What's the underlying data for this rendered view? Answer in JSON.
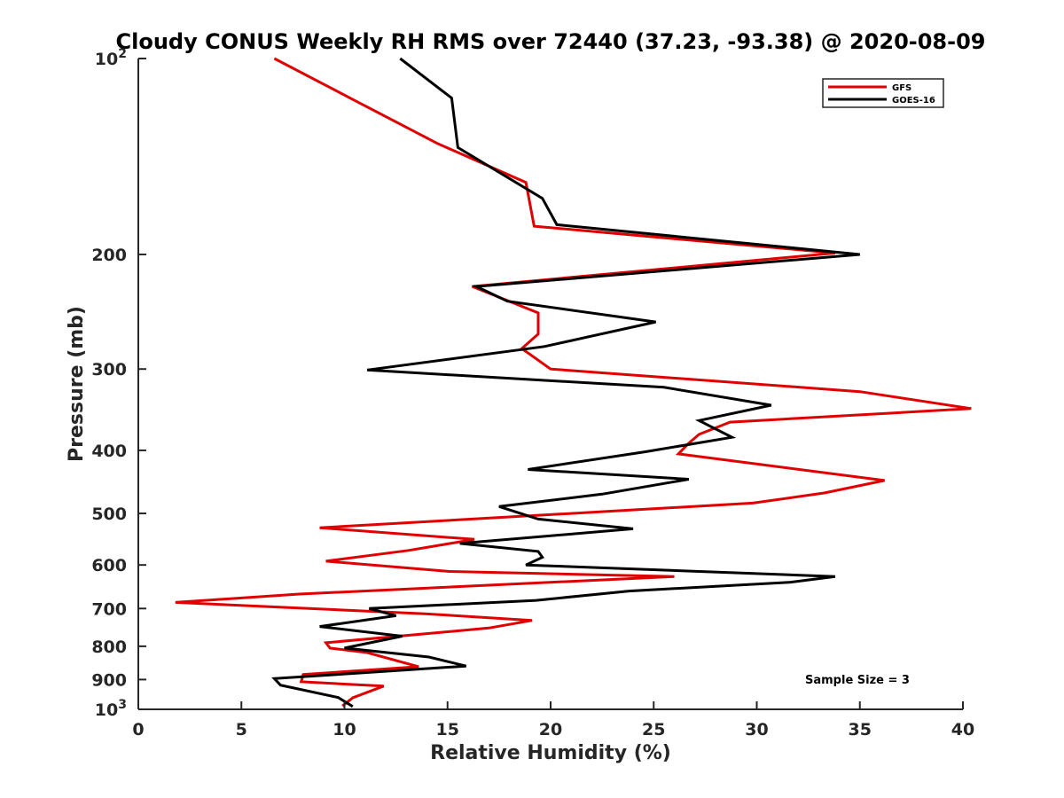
{
  "chart_data": {
    "type": "line",
    "title": "Cloudy CONUS Weekly RH RMS over 72440 (37.23, -93.38) @ 2020-08-09",
    "xlabel": "Relative Humidity (%)",
    "ylabel": "Pressure (mb)",
    "xlim": [
      0,
      40
    ],
    "ylim": [
      100,
      1000
    ],
    "yscale": "log",
    "yreversed": true,
    "grid": false,
    "legend_position": "top-right",
    "x_ticks": [
      0,
      5,
      10,
      15,
      20,
      25,
      30,
      35,
      40
    ],
    "x_tick_labels": [
      "0",
      "5",
      "10",
      "15",
      "20",
      "25",
      "30",
      "35",
      "40"
    ],
    "y_ticks": [
      100,
      200,
      300,
      400,
      500,
      600,
      700,
      800,
      900,
      1000
    ],
    "y_tick_labels": [
      {
        "base": "10",
        "exp": "2"
      },
      {
        "base": "200",
        "exp": ""
      },
      {
        "base": "300",
        "exp": ""
      },
      {
        "base": "400",
        "exp": ""
      },
      {
        "base": "500",
        "exp": ""
      },
      {
        "base": "600",
        "exp": ""
      },
      {
        "base": "700",
        "exp": ""
      },
      {
        "base": "800",
        "exp": ""
      },
      {
        "base": "900",
        "exp": ""
      },
      {
        "base": "10",
        "exp": "3"
      }
    ],
    "annotation": "Sample Size = 3",
    "series": [
      {
        "name": "GFS",
        "color": "#e00000",
        "points": [
          [
            6.6,
            100
          ],
          [
            10.5,
            116
          ],
          [
            14.5,
            135
          ],
          [
            18.8,
            155
          ],
          [
            19.2,
            181
          ],
          [
            33.8,
            199
          ],
          [
            16.2,
            224
          ],
          [
            19.4,
            246
          ],
          [
            19.4,
            265
          ],
          [
            18.6,
            279
          ],
          [
            20.0,
            300
          ],
          [
            35.0,
            325
          ],
          [
            40.4,
            345
          ],
          [
            28.7,
            362
          ],
          [
            27.2,
            378
          ],
          [
            26.7,
            390
          ],
          [
            26.2,
            405
          ],
          [
            36.2,
            445
          ],
          [
            33.3,
            465
          ],
          [
            29.8,
            482
          ],
          [
            8.8,
            526
          ],
          [
            16.3,
            548
          ],
          [
            13.1,
            570
          ],
          [
            9.1,
            592
          ],
          [
            15.1,
            614
          ],
          [
            26.0,
            625
          ],
          [
            7.8,
            665
          ],
          [
            1.8,
            685
          ],
          [
            13.9,
            713
          ],
          [
            19.1,
            730
          ],
          [
            17.0,
            750
          ],
          [
            9.1,
            790
          ],
          [
            9.3,
            805
          ],
          [
            11.1,
            818
          ],
          [
            13.6,
            860
          ],
          [
            8.0,
            884
          ],
          [
            7.9,
            907
          ],
          [
            11.9,
            921
          ],
          [
            10.4,
            960
          ],
          [
            9.9,
            988
          ]
        ]
      },
      {
        "name": "GOES-16",
        "color": "#000000",
        "points": [
          [
            12.7,
            100
          ],
          [
            15.2,
            115
          ],
          [
            15.5,
            137
          ],
          [
            19.6,
            164
          ],
          [
            20.3,
            180
          ],
          [
            35.0,
            200
          ],
          [
            16.4,
            224
          ],
          [
            17.9,
            236
          ],
          [
            25.1,
            254
          ],
          [
            19.7,
            277
          ],
          [
            11.1,
            301
          ],
          [
            25.5,
            320
          ],
          [
            30.7,
            341
          ],
          [
            27.2,
            360
          ],
          [
            28.8,
            382
          ],
          [
            24.6,
            402
          ],
          [
            18.9,
            428
          ],
          [
            26.7,
            443
          ],
          [
            22.5,
            467
          ],
          [
            17.5,
            488
          ],
          [
            19.4,
            510
          ],
          [
            24.0,
            528
          ],
          [
            15.6,
            556
          ],
          [
            19.4,
            572
          ],
          [
            19.6,
            584
          ],
          [
            18.8,
            600
          ],
          [
            33.8,
            625
          ],
          [
            31.6,
            638
          ],
          [
            23.8,
            658
          ],
          [
            19.3,
            680
          ],
          [
            11.2,
            700
          ],
          [
            12.5,
            718
          ],
          [
            8.8,
            746
          ],
          [
            12.8,
            772
          ],
          [
            10.0,
            805
          ],
          [
            14.1,
            831
          ],
          [
            15.9,
            858
          ],
          [
            6.6,
            897
          ],
          [
            6.9,
            918
          ],
          [
            9.7,
            959
          ],
          [
            10.4,
            990
          ]
        ]
      }
    ]
  }
}
